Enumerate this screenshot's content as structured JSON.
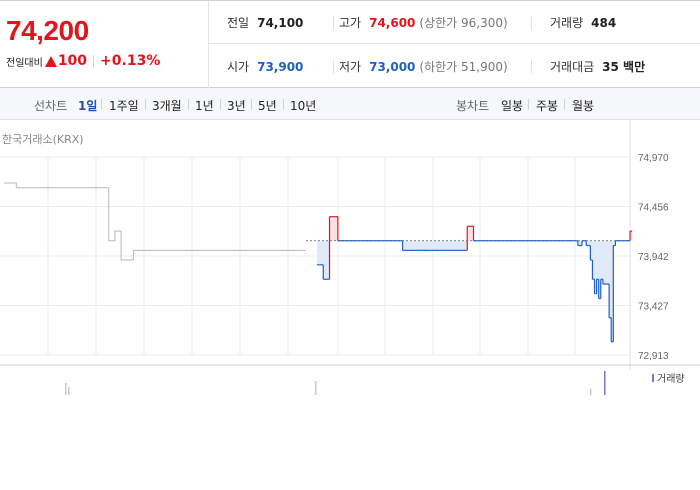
{
  "quote": {
    "current_price": "74,200",
    "change_label": "전일대비",
    "change_amount": "100",
    "change_percent": "+0.13%"
  },
  "stats": {
    "prev_close_label": "전일",
    "prev_close": "74,100",
    "high_label": "고가",
    "high": "74,600",
    "upper_limit": "(상한가 96,300)",
    "volume_label": "거래량",
    "volume": "484",
    "open_label": "시가",
    "open": "73,900",
    "low_label": "저가",
    "low": "73,000",
    "lower_limit": "(하한가 51,900)",
    "amount_label": "거래대금",
    "amount": "35 백만"
  },
  "line_chart_controls": {
    "label": "선차트",
    "options": [
      "1일",
      "1주일",
      "3개월",
      "1년",
      "3년",
      "5년",
      "10년"
    ],
    "active": "1일"
  },
  "candle_chart_controls": {
    "label": "봉차트",
    "options": [
      "일봉",
      "주봉",
      "월봉"
    ]
  },
  "exchange_label": "한국거래소(KRX)",
  "colors": {
    "up": "#e0161c",
    "down": "#1f5fbf",
    "prev_day": "#b8b8b8",
    "volume": "#8a6fc4"
  },
  "chart_data": {
    "type": "line",
    "y_ticks": [
      "74,970",
      "74,456",
      "73,942",
      "73,427",
      "72,913"
    ],
    "ylim": [
      72913,
      74970
    ],
    "reference_value": 74100,
    "volume_legend": "거래량",
    "previous_day_series": [
      74700,
      74700,
      74650,
      74650,
      74650,
      74650,
      74650,
      74650,
      74650,
      74650,
      74650,
      74650,
      74650,
      74650,
      74650,
      74650,
      74650,
      74100,
      74200,
      73900,
      73900,
      74000,
      74000,
      74000,
      74000,
      74000,
      74000,
      74000,
      74000,
      74000,
      74000,
      74000,
      74000,
      74000,
      74000,
      74000,
      74000,
      74000,
      74000,
      74000,
      74000,
      74000,
      74000,
      74000,
      74000,
      74000,
      74000,
      74000,
      74000,
      74000
    ],
    "today_series": [
      73850,
      73850,
      73850,
      73700,
      73700,
      73700,
      74350,
      74350,
      74350,
      74350,
      74100,
      74100,
      74100,
      74100,
      74100,
      74100,
      74100,
      74100,
      74100,
      74100,
      74100,
      74100,
      74100,
      74100,
      74100,
      74100,
      74100,
      74100,
      74100,
      74100,
      74100,
      74100,
      74100,
      74100,
      74100,
      74100,
      74100,
      74100,
      74100,
      74100,
      74100,
      74000,
      74000,
      74000,
      74000,
      74000,
      74000,
      74000,
      74000,
      74000,
      74000,
      74000,
      74000,
      74000,
      74000,
      74000,
      74000,
      74000,
      74000,
      74000,
      74000,
      74000,
      74000,
      74000,
      74000,
      74000,
      74000,
      74000,
      74000,
      74000,
      74000,
      74000,
      74250,
      74250,
      74250,
      74100,
      74100,
      74100,
      74100,
      74100,
      74100,
      74100,
      74100,
      74100,
      74100,
      74100,
      74100,
      74100,
      74100,
      74100,
      74100,
      74100,
      74100,
      74100,
      74100,
      74100,
      74100,
      74100,
      74100,
      74100,
      74100,
      74100,
      74100,
      74100,
      74100,
      74100,
      74100,
      74100,
      74100,
      74100,
      74100,
      74100,
      74100,
      74100,
      74100,
      74100,
      74100,
      74100,
      74100,
      74100,
      74100,
      74100,
      74100,
      74100,
      74100,
      74050,
      74050,
      74100,
      74100,
      74050,
      74050,
      73900,
      73700,
      73550,
      73700,
      73500,
      73700,
      73650,
      73650,
      73650,
      73300,
      73050,
      74050,
      74100,
      74100,
      74100,
      74100,
      74100,
      74100,
      74100,
      74200
    ]
  }
}
